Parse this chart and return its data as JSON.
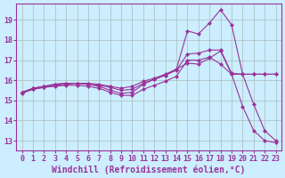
{
  "background_color": "#cceeff",
  "grid_color": "#aabbbb",
  "line_color": "#993399",
  "marker_color": "#993399",
  "xlabel": "Windchill (Refroidissement éolien,°C)",
  "xlabel_fontsize": 7,
  "tick_fontsize": 6,
  "xlim": [
    -0.5,
    23.5
  ],
  "ylim": [
    12.5,
    19.8
  ],
  "yticks": [
    13,
    14,
    15,
    16,
    17,
    18,
    19
  ],
  "xticks": [
    0,
    1,
    2,
    3,
    4,
    5,
    6,
    7,
    8,
    9,
    10,
    11,
    12,
    13,
    14,
    15,
    16,
    17,
    18,
    19,
    20,
    21,
    22,
    23
  ],
  "series": [
    [
      15.4,
      15.55,
      15.65,
      15.75,
      15.8,
      15.85,
      15.85,
      15.8,
      15.7,
      15.6,
      15.7,
      15.95,
      16.1,
      16.3,
      16.55,
      16.85,
      16.8,
      17.1,
      17.45,
      16.3,
      16.3,
      16.3,
      16.3,
      16.3
    ],
    [
      15.4,
      15.6,
      15.7,
      15.8,
      15.85,
      15.85,
      15.8,
      15.75,
      15.65,
      15.5,
      15.55,
      15.85,
      16.05,
      16.25,
      16.5,
      17.3,
      17.35,
      17.5,
      17.5,
      16.35,
      16.3,
      16.3,
      16.3,
      16.3
    ],
    [
      15.4,
      15.6,
      15.7,
      15.8,
      15.85,
      15.85,
      15.8,
      15.7,
      15.5,
      15.35,
      15.4,
      15.8,
      16.05,
      16.25,
      16.55,
      18.45,
      18.3,
      18.85,
      19.5,
      18.75,
      16.3,
      14.8,
      13.5,
      13.0
    ],
    [
      15.35,
      15.55,
      15.65,
      15.7,
      15.75,
      15.75,
      15.7,
      15.6,
      15.4,
      15.25,
      15.25,
      15.55,
      15.75,
      15.95,
      16.2,
      17.0,
      17.0,
      17.15,
      16.8,
      16.3,
      14.7,
      13.5,
      13.0,
      12.9
    ]
  ]
}
